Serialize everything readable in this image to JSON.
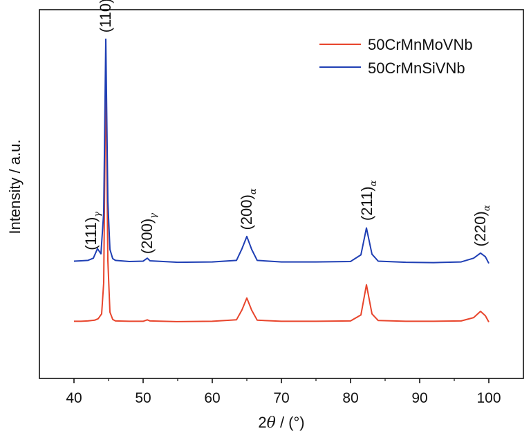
{
  "chart_data": {
    "type": "line",
    "xlabel_prefix": "2",
    "xlabel_symbol": "θ",
    "xlabel_suffix": " / (°)",
    "ylabel": "Intensity / a.u.",
    "xlim": [
      35,
      105
    ],
    "xticks": [
      "40",
      "50",
      "60",
      "70",
      "80",
      "90",
      "100"
    ],
    "xtick_values": [
      40,
      50,
      60,
      70,
      80,
      90,
      100
    ],
    "ylim": [
      0,
      100
    ],
    "legend_position": "top-right",
    "series": [
      {
        "name": "50CrMnMoVNb",
        "color": "#e8452c",
        "x": [
          40,
          41,
          42,
          43,
          43.5,
          44,
          44.3,
          44.6,
          44.9,
          45.2,
          45.6,
          46,
          48,
          50,
          50.6,
          51,
          55,
          60,
          63.5,
          64.3,
          65,
          65.7,
          66.5,
          70,
          75,
          80,
          81.5,
          82.3,
          83.1,
          84,
          88,
          92,
          96,
          97.8,
          98.8,
          99.5,
          100
        ],
        "y": [
          15.5,
          15.5,
          15.6,
          15.8,
          16.2,
          17.5,
          26,
          84,
          32,
          18,
          16,
          15.6,
          15.5,
          15.5,
          15.9,
          15.6,
          15.4,
          15.5,
          15.9,
          18.6,
          21.8,
          18.5,
          15.8,
          15.5,
          15.5,
          15.6,
          17.2,
          25.4,
          17.5,
          15.7,
          15.5,
          15.5,
          15.6,
          16.5,
          18.2,
          17,
          15.3
        ]
      },
      {
        "name": "50CrMnSiVNb",
        "color": "#1f3fb4",
        "x": [
          40,
          41,
          42,
          42.8,
          43.4,
          43.9,
          44.3,
          44.6,
          44.9,
          45.2,
          45.6,
          46,
          48,
          50,
          50.6,
          51,
          55,
          60,
          63.5,
          64.3,
          65,
          65.7,
          66.5,
          70,
          75,
          80,
          81.5,
          82.3,
          83.1,
          84,
          88,
          92,
          96,
          97.8,
          98.8,
          99.5,
          100
        ],
        "y": [
          31.8,
          31.9,
          32,
          32.6,
          35.2,
          33.8,
          45,
          92,
          48,
          35,
          32.5,
          32,
          31.7,
          31.8,
          32.6,
          31.9,
          31.5,
          31.6,
          32,
          35.2,
          38.5,
          35,
          32,
          31.6,
          31.6,
          31.7,
          33.5,
          40.8,
          33.7,
          31.8,
          31.5,
          31.4,
          31.6,
          32.6,
          34,
          33,
          31.2
        ]
      }
    ],
    "annotations": [
      {
        "main": "(111)",
        "sub": "γ",
        "x": 42.5,
        "y": 34
      },
      {
        "main": "(110)",
        "sub": "α",
        "x": 44.6,
        "y": 93
      },
      {
        "main": "(200)",
        "sub": "γ",
        "x": 50.6,
        "y": 33
      },
      {
        "main": "(200)",
        "sub": "α",
        "x": 65,
        "y": 39.5
      },
      {
        "main": "(211)",
        "sub": "α",
        "x": 82.4,
        "y": 42
      },
      {
        "main": "(220)",
        "sub": "α",
        "x": 98.8,
        "y": 35
      }
    ]
  }
}
